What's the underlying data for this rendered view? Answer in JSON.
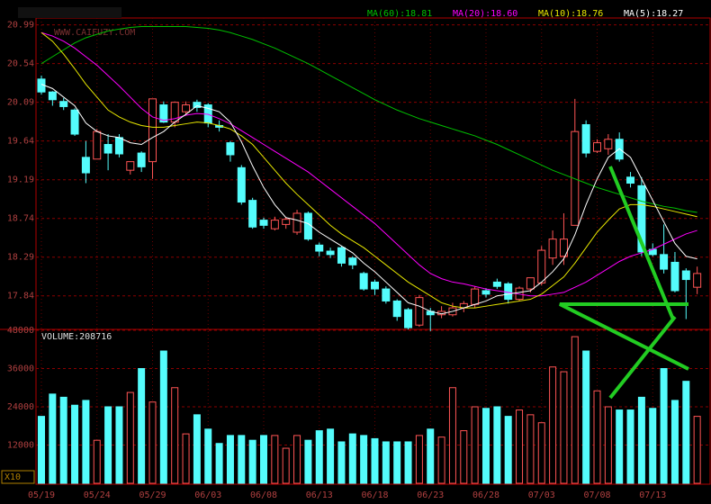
{
  "chart_data": {
    "type": "candlestick",
    "watermark": "WWW.CAIFUZY.COM",
    "categories": [
      "05/19",
      null,
      null,
      null,
      null,
      "05/24",
      null,
      null,
      null,
      null,
      "05/29",
      null,
      null,
      null,
      null,
      "06/03",
      null,
      null,
      null,
      null,
      "06/08",
      null,
      null,
      null,
      null,
      "06/13",
      null,
      null,
      null,
      null,
      "06/18",
      null,
      null,
      null,
      null,
      "06/23",
      null,
      null,
      null,
      null,
      "06/28",
      null,
      null,
      null,
      null,
      "07/03",
      null,
      null,
      null,
      null,
      "07/08",
      null,
      null,
      null,
      null,
      "07/13",
      null,
      null,
      null,
      null
    ],
    "open": [
      20.36,
      20.21,
      20.1,
      20.0,
      19.45,
      19.43,
      19.6,
      19.68,
      19.3,
      19.5,
      19.4,
      20.06,
      19.86,
      19.98,
      20.09,
      20.06,
      19.82,
      19.62,
      19.33,
      18.95,
      18.72,
      18.62,
      18.67,
      18.58,
      18.8,
      18.43,
      18.36,
      18.4,
      18.28,
      18.1,
      18.0,
      17.92,
      17.78,
      17.68,
      17.5,
      17.66,
      17.62,
      17.62,
      17.7,
      17.74,
      17.9,
      18.0,
      17.98,
      17.8,
      17.92,
      17.99,
      18.28,
      18.3,
      18.66,
      19.83,
      19.52,
      19.55,
      19.66,
      19.22,
      19.12,
      18.38,
      18.32,
      18.23,
      18.13,
      17.94
    ],
    "high": [
      20.4,
      20.22,
      20.14,
      20.02,
      19.64,
      19.78,
      19.72,
      19.72,
      19.4,
      19.52,
      20.13,
      20.1,
      20.1,
      20.1,
      20.12,
      20.08,
      19.88,
      19.64,
      19.36,
      18.98,
      18.75,
      18.76,
      18.75,
      18.84,
      18.82,
      18.46,
      18.4,
      18.42,
      18.3,
      18.12,
      18.03,
      17.95,
      17.8,
      17.7,
      17.85,
      17.7,
      17.72,
      17.76,
      17.78,
      17.95,
      17.93,
      18.04,
      18.0,
      17.95,
      18.05,
      18.42,
      18.6,
      18.8,
      20.13,
      19.88,
      19.66,
      19.72,
      19.74,
      19.28,
      19.22,
      18.45,
      18.67,
      18.35,
      18.16,
      18.18
    ],
    "low": [
      20.18,
      20.05,
      20.0,
      19.7,
      19.15,
      19.43,
      19.3,
      19.45,
      19.25,
      19.28,
      19.2,
      19.85,
      19.8,
      19.95,
      19.98,
      19.8,
      19.75,
      19.4,
      18.9,
      18.62,
      18.62,
      18.6,
      18.62,
      18.55,
      18.48,
      18.3,
      18.28,
      18.18,
      18.15,
      17.9,
      17.85,
      17.75,
      17.55,
      17.45,
      17.48,
      17.43,
      17.58,
      17.6,
      17.65,
      17.7,
      17.82,
      17.92,
      17.75,
      17.78,
      17.88,
      17.96,
      18.2,
      18.2,
      18.66,
      19.45,
      19.5,
      19.48,
      19.4,
      19.1,
      18.3,
      18.3,
      18.1,
      17.88,
      17.57,
      17.86
    ],
    "close": [
      20.21,
      20.12,
      20.04,
      19.72,
      19.27,
      19.75,
      19.5,
      19.49,
      19.4,
      19.34,
      20.13,
      19.86,
      20.09,
      20.06,
      20.03,
      19.85,
      19.8,
      19.48,
      18.93,
      18.64,
      18.66,
      18.72,
      18.73,
      18.8,
      18.5,
      18.36,
      18.32,
      18.22,
      18.2,
      17.92,
      17.92,
      17.78,
      17.6,
      17.47,
      17.82,
      17.62,
      17.66,
      17.7,
      17.75,
      17.92,
      17.86,
      17.95,
      17.8,
      17.93,
      18.05,
      18.37,
      18.5,
      18.5,
      19.75,
      19.5,
      19.62,
      19.66,
      19.43,
      19.15,
      18.35,
      18.32,
      18.15,
      17.9,
      18.03,
      18.1
    ],
    "up_color": "#ff5454",
    "down_color": "#54fcfc",
    "ylim": [
      17.45,
      21.07
    ],
    "yticks": [
      20.99,
      20.54,
      20.09,
      19.64,
      19.19,
      18.74,
      18.29,
      17.84
    ],
    "ma": [
      {
        "label": "MA(60):18.81",
        "color": "#00c000",
        "values": [
          20.54,
          20.62,
          20.7,
          20.78,
          20.84,
          20.88,
          20.92,
          20.94,
          20.96,
          20.97,
          20.97,
          20.97,
          20.97,
          20.97,
          20.96,
          20.95,
          20.93,
          20.9,
          20.86,
          20.82,
          20.77,
          20.72,
          20.66,
          20.6,
          20.54,
          20.47,
          20.4,
          20.33,
          20.26,
          20.19,
          20.12,
          20.06,
          20.0,
          19.95,
          19.9,
          19.86,
          19.82,
          19.78,
          19.74,
          19.7,
          19.65,
          19.6,
          19.54,
          19.48,
          19.42,
          19.36,
          19.3,
          19.25,
          19.2,
          19.15,
          19.1,
          19.06,
          19.02,
          18.98,
          18.94,
          18.91,
          18.88,
          18.86,
          18.83,
          18.81
        ]
      },
      {
        "label": "MA(20):18.60",
        "color": "#ff00ff",
        "values": [
          20.9,
          20.86,
          20.8,
          20.72,
          20.62,
          20.52,
          20.4,
          20.28,
          20.15,
          20.02,
          19.92,
          19.88,
          19.9,
          19.94,
          19.96,
          19.95,
          19.9,
          19.84,
          19.76,
          19.68,
          19.6,
          19.52,
          19.44,
          19.36,
          19.28,
          19.18,
          19.08,
          18.98,
          18.88,
          18.78,
          18.68,
          18.56,
          18.44,
          18.32,
          18.2,
          18.1,
          18.04,
          18.0,
          17.98,
          17.95,
          17.92,
          17.9,
          17.88,
          17.86,
          17.84,
          17.84,
          17.86,
          17.88,
          17.94,
          18.0,
          18.08,
          18.16,
          18.24,
          18.3,
          18.34,
          18.38,
          18.44,
          18.5,
          18.56,
          18.6
        ]
      },
      {
        "label": "MA(10):18.76",
        "color": "#e8e800",
        "values": [
          20.9,
          20.8,
          20.65,
          20.48,
          20.3,
          20.15,
          20.0,
          19.92,
          19.86,
          19.82,
          19.8,
          19.8,
          19.82,
          19.84,
          19.86,
          19.85,
          19.82,
          19.78,
          19.7,
          19.6,
          19.45,
          19.3,
          19.15,
          19.02,
          18.9,
          18.78,
          18.66,
          18.56,
          18.48,
          18.4,
          18.3,
          18.2,
          18.1,
          18.0,
          17.92,
          17.84,
          17.76,
          17.72,
          17.7,
          17.7,
          17.72,
          17.74,
          17.76,
          17.78,
          17.8,
          17.86,
          17.96,
          18.06,
          18.22,
          18.4,
          18.58,
          18.72,
          18.85,
          18.9,
          18.9,
          18.88,
          18.85,
          18.82,
          18.79,
          18.76
        ]
      },
      {
        "label": "MA(5):18.27",
        "color": "#ffffff",
        "values": [
          20.3,
          20.25,
          20.15,
          20.05,
          19.85,
          19.75,
          19.7,
          19.68,
          19.62,
          19.6,
          19.68,
          19.75,
          19.86,
          19.95,
          20.05,
          20.02,
          19.98,
          19.86,
          19.63,
          19.35,
          19.1,
          18.9,
          18.75,
          18.72,
          18.68,
          18.58,
          18.5,
          18.42,
          18.34,
          18.22,
          18.12,
          18.0,
          17.88,
          17.76,
          17.72,
          17.66,
          17.63,
          17.66,
          17.7,
          17.74,
          17.78,
          17.84,
          17.86,
          17.88,
          17.9,
          18.0,
          18.12,
          18.27,
          18.55,
          18.9,
          19.2,
          19.45,
          19.55,
          19.45,
          19.2,
          18.95,
          18.7,
          18.45,
          18.3,
          18.27
        ]
      }
    ],
    "volume": {
      "label": "VOLUME:208716",
      "unit": "X10",
      "ylim": [
        0,
        48000
      ],
      "yticks": [
        48000,
        36000,
        24000,
        12000
      ],
      "values": [
        21000,
        28000,
        27000,
        24500,
        26000,
        13500,
        24000,
        24000,
        28500,
        36000,
        25500,
        41500,
        30000,
        15500,
        21500,
        17000,
        12500,
        15000,
        15000,
        13500,
        15000,
        15000,
        11000,
        15000,
        13500,
        16500,
        17000,
        13000,
        15500,
        15000,
        14000,
        13000,
        13000,
        13000,
        15000,
        17000,
        14500,
        30000,
        16500,
        24000,
        23500,
        24000,
        21000,
        23000,
        21500,
        19000,
        36500,
        35000,
        46000,
        41500,
        29000,
        24000,
        23000,
        23000,
        27000,
        23500,
        36000,
        26000,
        32000,
        21000
      ]
    }
  }
}
